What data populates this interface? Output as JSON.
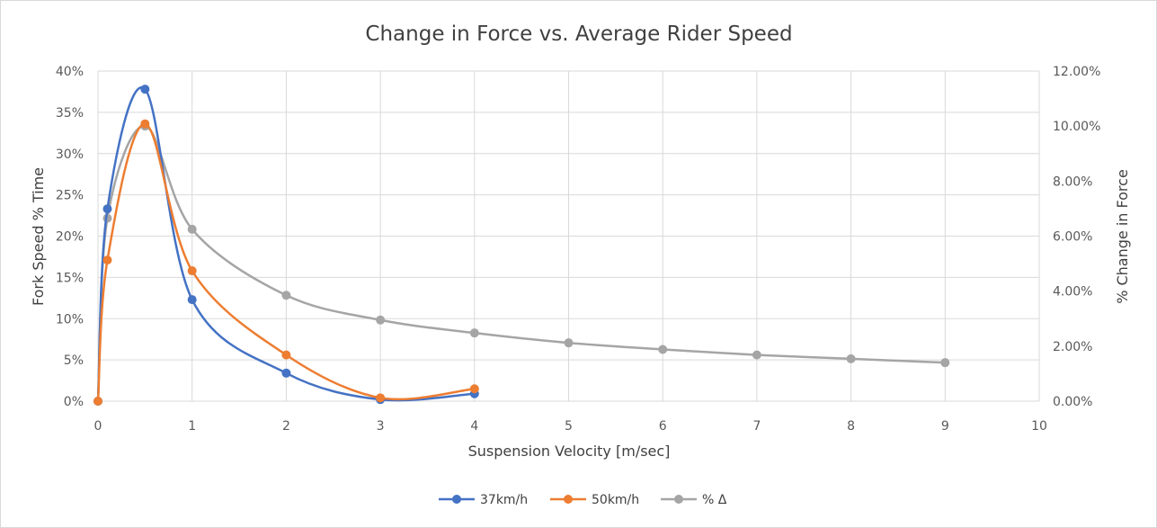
{
  "chart_data": {
    "type": "line",
    "title": "Change in Force vs. Average Rider Speed",
    "xlabel": "Suspension Velocity [m/sec]",
    "ylabel": "Fork Speed % Time",
    "y2label": "% Change in Force",
    "xlim": [
      0,
      10
    ],
    "ylim": [
      0,
      40
    ],
    "y2lim": [
      0,
      12
    ],
    "x_ticks": [
      "0",
      "1",
      "2",
      "3",
      "4",
      "5",
      "6",
      "7",
      "8",
      "9",
      "10"
    ],
    "y_ticks": [
      "0%",
      "5%",
      "10%",
      "15%",
      "20%",
      "25%",
      "30%",
      "35%",
      "40%"
    ],
    "y2_ticks": [
      "0.00%",
      "2.00%",
      "4.00%",
      "6.00%",
      "8.00%",
      "10.00%",
      "12.00%"
    ],
    "grid": "vertical and horizontal",
    "legend_position": "bottom",
    "series": [
      {
        "name": "37km/h",
        "axis": "left",
        "color": "#4472c4",
        "x": [
          0,
          0.1,
          0.5,
          1,
          2,
          3,
          4
        ],
        "y": [
          0,
          23.3,
          37.8,
          12.3,
          3.4,
          0.2,
          0.9
        ]
      },
      {
        "name": "50km/h",
        "axis": "left",
        "color": "#ed7d31",
        "x": [
          0,
          0.1,
          0.5,
          1,
          2,
          3,
          4
        ],
        "y": [
          0,
          17.1,
          33.6,
          15.8,
          5.6,
          0.4,
          1.5
        ]
      },
      {
        "name": "% Δ",
        "axis": "right",
        "color": "#a5a5a5",
        "x": [
          0,
          0.1,
          0.5,
          1,
          2,
          3,
          4,
          5,
          6,
          7,
          8,
          9
        ],
        "y": [
          0,
          6.65,
          10.0,
          6.25,
          3.85,
          2.95,
          2.48,
          2.12,
          1.88,
          1.68,
          1.54,
          1.4
        ]
      }
    ]
  }
}
